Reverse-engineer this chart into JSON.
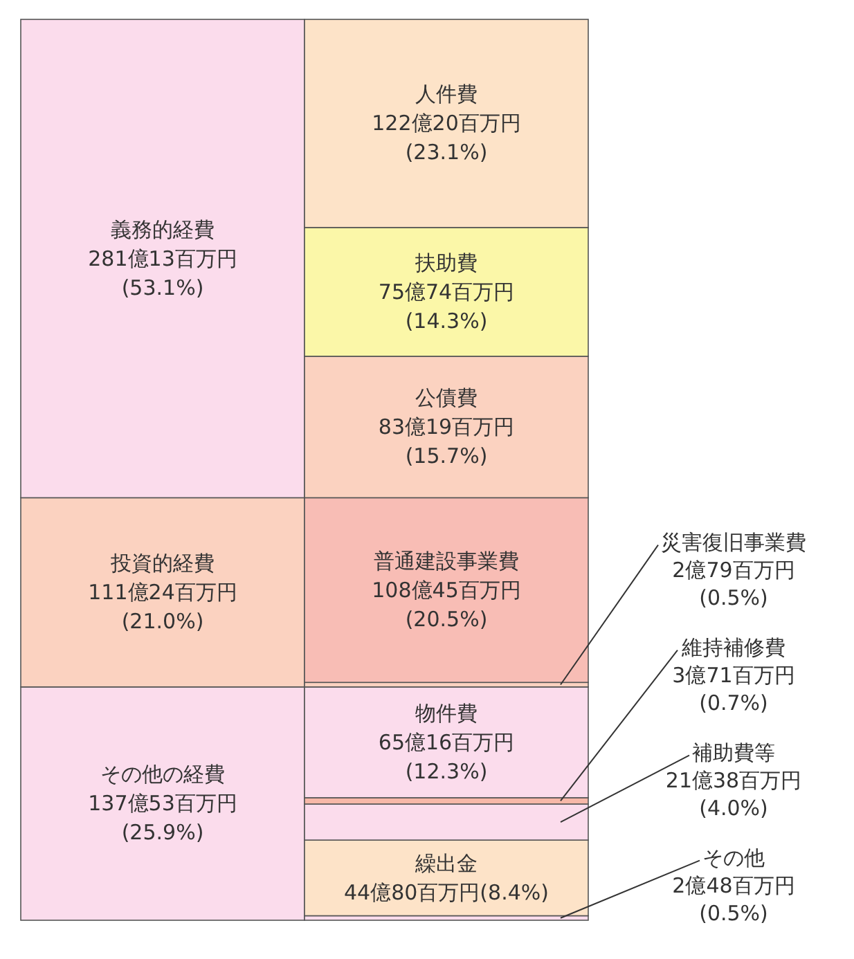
{
  "chart_data": {
    "type": "bar",
    "stacked": true,
    "categories": [
      null,
      null
    ],
    "series": [
      {
        "name": "その他の経費",
        "color": "#fbdcec",
        "values": [
          25.9,
          null
        ],
        "value_labels": [
          "137億53百万円\n(25.9%)",
          null
        ]
      },
      {
        "name": "投資的経費",
        "color": "#fbd2c0",
        "values": [
          21.0,
          null
        ],
        "value_labels": [
          "111億24百万円\n(21.0%)",
          null
        ]
      },
      {
        "name": "義務的経費",
        "color": "#fbdcec",
        "values": [
          53.1,
          null
        ],
        "value_labels": [
          "281億13百万円\n(53.1%)",
          null
        ]
      },
      {
        "name": "その他",
        "color": "#fbdcec",
        "values": [
          null,
          0.5
        ],
        "value_labels": [
          null,
          "2億48百万円\n(0.5%)"
        ]
      },
      {
        "name": "繰出金",
        "color": "#fde3c8",
        "values": [
          null,
          8.4
        ],
        "value_labels": [
          null,
          "44億80百万円(8.4%)"
        ]
      },
      {
        "name": "補助費等",
        "color": "#fbdcec",
        "values": [
          null,
          4.0
        ],
        "value_labels": [
          null,
          "21億38百万円\n(4.0%)"
        ]
      },
      {
        "name": "維持補修費",
        "color": "#f7b8a8",
        "values": [
          null,
          0.7
        ],
        "value_labels": [
          null,
          "3億71百万円\n(0.7%)"
        ]
      },
      {
        "name": "物件費",
        "color": "#fbdcec",
        "values": [
          null,
          12.3
        ],
        "value_labels": [
          null,
          "65億16百万円\n(12.3%)"
        ]
      },
      {
        "name": "災害復旧事業費",
        "color": "#fbd2c0",
        "values": [
          null,
          0.5
        ],
        "value_labels": [
          null,
          "2億79百万円\n(0.5%)"
        ]
      },
      {
        "name": "普通建設事業費",
        "color": "#f8bdb5",
        "values": [
          null,
          20.5
        ],
        "value_labels": [
          null,
          "108億45百万円\n(20.5%)"
        ]
      },
      {
        "name": "公債費",
        "color": "#fbd2c0",
        "values": [
          null,
          15.7
        ],
        "value_labels": [
          null,
          "83億19百万円\n(15.7%)"
        ]
      },
      {
        "name": "扶助費",
        "color": "#fbf7a8",
        "values": [
          null,
          14.3
        ],
        "value_labels": [
          null,
          "75億74百万円\n(14.3%)"
        ]
      },
      {
        "name": "人件費",
        "color": "#fde3c8",
        "values": [
          null,
          23.1
        ],
        "value_labels": [
          null,
          "122億20百万円\n(23.1%)"
        ]
      }
    ]
  }
}
